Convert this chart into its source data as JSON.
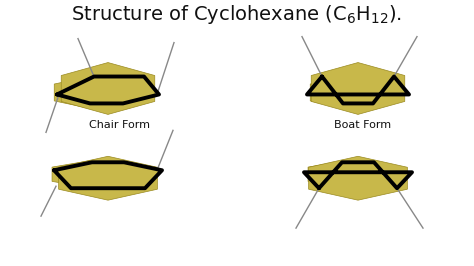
{
  "bg_color": "#ffffff",
  "hex_fill": "#c8b84a",
  "hex_edge": "#9a8a20",
  "bold_line_color": "#000000",
  "thin_line_color": "#888888",
  "label_chair": "Chair Form",
  "label_boat": "Boat Form",
  "bold_lw": 2.8,
  "thin_lw": 1.0,
  "title": "Structure of Cyclohexane (C$_6$H$_{12}$).",
  "title_fontsize": 14,
  "title_color": "#111111",
  "label_fontsize": 8
}
